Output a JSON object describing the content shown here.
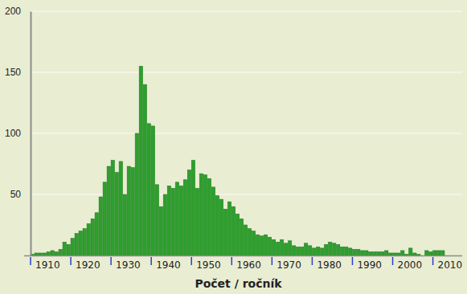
{
  "chart_data": {
    "type": "bar",
    "x_label": "Počet / ročník",
    "categories": [
      "1910",
      null,
      null,
      null,
      null,
      null,
      null,
      null,
      null,
      null,
      "1920",
      null,
      null,
      null,
      null,
      null,
      null,
      null,
      null,
      null,
      "1930",
      null,
      null,
      null,
      null,
      null,
      null,
      null,
      null,
      null,
      "1940",
      null,
      null,
      null,
      null,
      null,
      null,
      null,
      null,
      null,
      "1950",
      null,
      null,
      null,
      null,
      null,
      null,
      null,
      null,
      null,
      "1960",
      null,
      null,
      null,
      null,
      null,
      null,
      null,
      null,
      null,
      "1970",
      null,
      null,
      null,
      null,
      null,
      null,
      null,
      null,
      null,
      "1980",
      null,
      null,
      null,
      null,
      null,
      null,
      null,
      null,
      null,
      "1990",
      null,
      null,
      null,
      null,
      null,
      null,
      null,
      null,
      null,
      "2000",
      null,
      null,
      null,
      null,
      null,
      null,
      null,
      null,
      null,
      "2010",
      null,
      null
    ],
    "values": [
      1,
      2,
      2,
      2,
      3,
      4,
      3,
      5,
      11,
      9,
      14,
      18,
      20,
      22,
      26,
      30,
      35,
      48,
      60,
      73,
      78,
      68,
      77,
      50,
      73,
      72,
      100,
      155,
      140,
      108,
      106,
      58,
      40,
      50,
      57,
      55,
      60,
      57,
      62,
      70,
      78,
      55,
      67,
      66,
      63,
      56,
      49,
      46,
      38,
      44,
      40,
      34,
      30,
      25,
      22,
      20,
      17,
      16,
      17,
      15,
      13,
      11,
      13,
      10,
      12,
      8,
      7,
      7,
      10,
      8,
      6,
      7,
      6,
      9,
      11,
      10,
      9,
      7,
      7,
      6,
      5,
      5,
      4,
      4,
      3,
      3,
      3,
      3,
      4,
      2,
      2,
      2,
      4,
      1,
      6,
      2,
      1,
      0,
      4,
      3,
      4,
      4,
      4
    ],
    "color": "#2ca02c",
    "ylim": [
      0,
      200
    ],
    "yticks": [
      50,
      100,
      150,
      200
    ],
    "grid": true
  }
}
